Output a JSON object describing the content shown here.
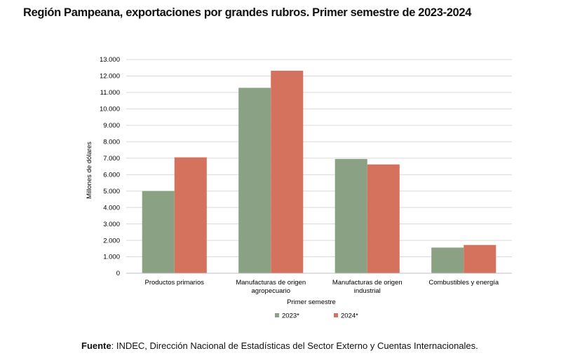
{
  "chart_data": {
    "type": "bar",
    "title": "Región Pampeana, exportaciones por grandes rubros. Primer semestre de 2023-2024",
    "xlabel": "Primer semestre",
    "ylabel": "Millones de dólares",
    "ylim": [
      0,
      13000
    ],
    "y_ticks": [
      "0",
      "1.000",
      "2.000",
      "3.000",
      "4.000",
      "5.000",
      "6.000",
      "7.000",
      "8.000",
      "9.000",
      "10.000",
      "11.000",
      "12.000",
      "13.000"
    ],
    "categories": [
      [
        "Productos primarios"
      ],
      [
        "Manufacturas de origen",
        "agropecuario"
      ],
      [
        "Manufacturas de origen",
        "industrial"
      ],
      [
        "Combustibles y energía"
      ]
    ],
    "series": [
      {
        "name": "2023*",
        "color": "#8ba183",
        "values": [
          5000,
          11280,
          6950,
          1560
        ]
      },
      {
        "name": "2024*",
        "color": "#d4725e",
        "values": [
          7050,
          12320,
          6620,
          1720
        ]
      }
    ],
    "grid": true,
    "legend_position": "bottom"
  },
  "source": {
    "label": "Fuente",
    "text": ": INDEC, Dirección Nacional de Estadísticas del Sector Externo y Cuentas Internacionales."
  }
}
